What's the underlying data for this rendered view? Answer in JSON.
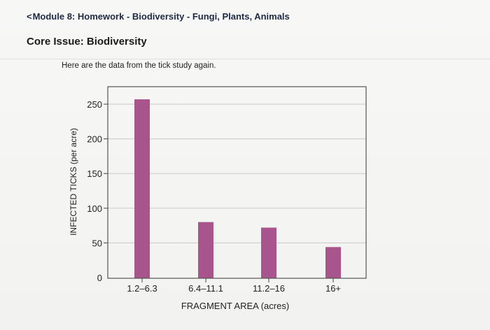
{
  "header": {
    "back_label": "Module 8: Homework - Biodiversity - Fungi, Plants, Animals",
    "section_title": "Core Issue: Biodiversity"
  },
  "intro_text": "Here are the data from the tick study again.",
  "colors": {
    "bar": "#a8558d",
    "grid": "#c9c9c9",
    "plot_border": "#555555"
  },
  "chart_data": {
    "type": "bar",
    "categories": [
      "1.2–6.3",
      "6.4–11.1",
      "11.2–16",
      "16+"
    ],
    "values": [
      257,
      80,
      72,
      44
    ],
    "title": "",
    "xlabel": "FRAGMENT AREA (acres)",
    "ylabel": "INFECTED TICKS (per acre)",
    "ylim": [
      0,
      275
    ],
    "yticks": [
      0,
      50,
      100,
      150,
      200,
      250
    ],
    "grid": true
  }
}
